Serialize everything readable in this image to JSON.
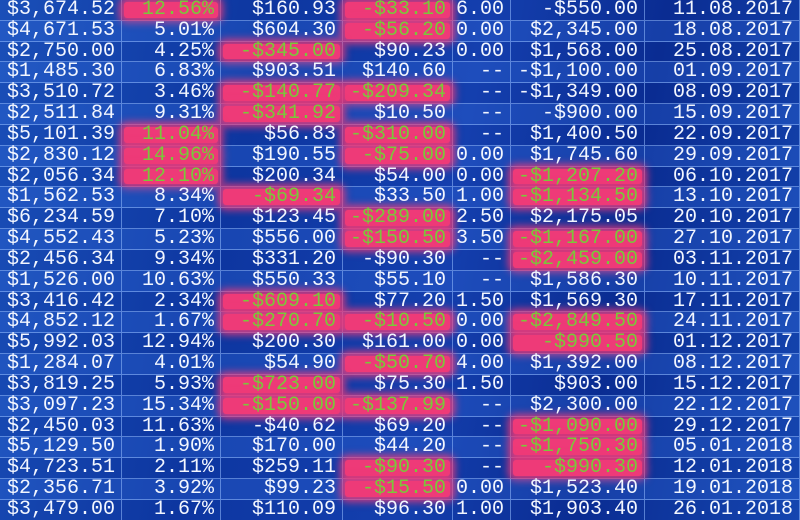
{
  "colors": {
    "background": "#0d36a0",
    "text": "#f2f6ff",
    "highlight_bg": "#ee3a78",
    "highlight_text": "#7ac83a"
  },
  "rows": [
    {
      "cells": [
        "$3,674.52",
        "12.56%",
        "$160.93",
        "-$33.10",
        "6.00",
        "-$550.00",
        "11.08.2017"
      ],
      "highlight": [
        1,
        3
      ]
    },
    {
      "cells": [
        "$4,671.53",
        "5.01%",
        "$604.30",
        "-$56.20",
        "0.00",
        "$2,345.00",
        "18.08.2017"
      ],
      "highlight": [
        3
      ]
    },
    {
      "cells": [
        "$2,750.00",
        "4.25%",
        "-$345.00",
        "$90.23",
        "0.00",
        "$1,568.00",
        "25.08.2017"
      ],
      "highlight": [
        2
      ]
    },
    {
      "cells": [
        "$1,485.30",
        "6.83%",
        "$903.51",
        "$140.60",
        "--",
        "-$1,100.00",
        "01.09.2017"
      ],
      "highlight": []
    },
    {
      "cells": [
        "$3,510.72",
        "3.46%",
        "-$140.77",
        "-$209.34",
        "--",
        "-$1,349.00",
        "08.09.2017"
      ],
      "highlight": [
        2,
        3
      ]
    },
    {
      "cells": [
        "$2,511.84",
        "9.31%",
        "-$341.92",
        "$10.50",
        "--",
        "-$900.00",
        "15.09.2017"
      ],
      "highlight": [
        2
      ]
    },
    {
      "cells": [
        "$5,101.39",
        "11.04%",
        "$56.83",
        "-$310.00",
        "--",
        "$1,400.50",
        "22.09.2017"
      ],
      "highlight": [
        1,
        3
      ]
    },
    {
      "cells": [
        "$2,830.12",
        "14.96%",
        "$190.55",
        "-$75.00",
        "0.00",
        "$1,745.60",
        "29.09.2017"
      ],
      "highlight": [
        1,
        3
      ]
    },
    {
      "cells": [
        "$2,056.34",
        "12.10%",
        "$200.34",
        "$54.00",
        "0.00",
        "-$1,207.20",
        "06.10.2017"
      ],
      "highlight": [
        1,
        5
      ]
    },
    {
      "cells": [
        "$1,562.53",
        "8.34%",
        "-$69.34",
        "$33.50",
        "1.00",
        "-$1,134.50",
        "13.10.2017"
      ],
      "highlight": [
        2,
        5
      ]
    },
    {
      "cells": [
        "$6,234.59",
        "7.10%",
        "$123.45",
        "-$289.00",
        "2.50",
        "$2,175.05",
        "20.10.2017"
      ],
      "highlight": [
        3
      ]
    },
    {
      "cells": [
        "$4,552.43",
        "5.23%",
        "$556.00",
        "-$150.50",
        "3.50",
        "-$1,167.00",
        "27.10.2017"
      ],
      "highlight": [
        3,
        5
      ]
    },
    {
      "cells": [
        "$2,456.34",
        "9.34%",
        "$331.20",
        "-$90.30",
        "--",
        "-$2,459.00",
        "03.11.2017"
      ],
      "highlight": [
        5
      ]
    },
    {
      "cells": [
        "$1,526.00",
        "10.63%",
        "$550.33",
        "$55.10",
        "--",
        "$1,586.30",
        "10.11.2017"
      ],
      "highlight": []
    },
    {
      "cells": [
        "$3,416.42",
        "2.34%",
        "-$609.10",
        "$77.20",
        "1.50",
        "$1,569.30",
        "17.11.2017"
      ],
      "highlight": [
        2
      ]
    },
    {
      "cells": [
        "$4,852.12",
        "1.67%",
        "-$270.70",
        "-$10.50",
        "0.00",
        "-$2,849.50",
        "24.11.2017"
      ],
      "highlight": [
        2,
        3,
        5
      ]
    },
    {
      "cells": [
        "$5,992.03",
        "12.94%",
        "$200.30",
        "$161.00",
        "0.00",
        "-$990.50",
        "01.12.2017"
      ],
      "highlight": [
        5
      ]
    },
    {
      "cells": [
        "$1,284.07",
        "4.01%",
        "$54.90",
        "-$50.70",
        "4.00",
        "$1,392.00",
        "08.12.2017"
      ],
      "highlight": [
        3
      ]
    },
    {
      "cells": [
        "$3,819.25",
        "5.93%",
        "-$723.00",
        "$75.30",
        "1.50",
        "$903.00",
        "15.12.2017"
      ],
      "highlight": [
        2
      ]
    },
    {
      "cells": [
        "$3,097.23",
        "15.34%",
        "-$150.00",
        "-$137.99",
        "--",
        "$2,300.00",
        "22.12.2017"
      ],
      "highlight": [
        2,
        3
      ]
    },
    {
      "cells": [
        "$2,450.03",
        "11.63%",
        "-$40.62",
        "$69.20",
        "--",
        "-$1,090.00",
        "29.12.2017"
      ],
      "highlight": [
        5
      ]
    },
    {
      "cells": [
        "$5,129.50",
        "1.90%",
        "$170.00",
        "$44.20",
        "--",
        "-$1,750.30",
        "05.01.2018"
      ],
      "highlight": [
        5
      ]
    },
    {
      "cells": [
        "$4,723.51",
        "2.11%",
        "$259.11",
        "-$90.30",
        "--",
        "-$990.30",
        "12.01.2018"
      ],
      "highlight": [
        3,
        5
      ]
    },
    {
      "cells": [
        "$2,356.71",
        "3.92%",
        "$99.23",
        "-$15.50",
        "0.00",
        "$1,523.40",
        "19.01.2018"
      ],
      "highlight": [
        3
      ]
    },
    {
      "cells": [
        "$3,479.00",
        "1.67%",
        "$110.09",
        "$96.30",
        "1.00",
        "$1,903.40",
        "26.01.2018"
      ],
      "highlight": []
    }
  ]
}
